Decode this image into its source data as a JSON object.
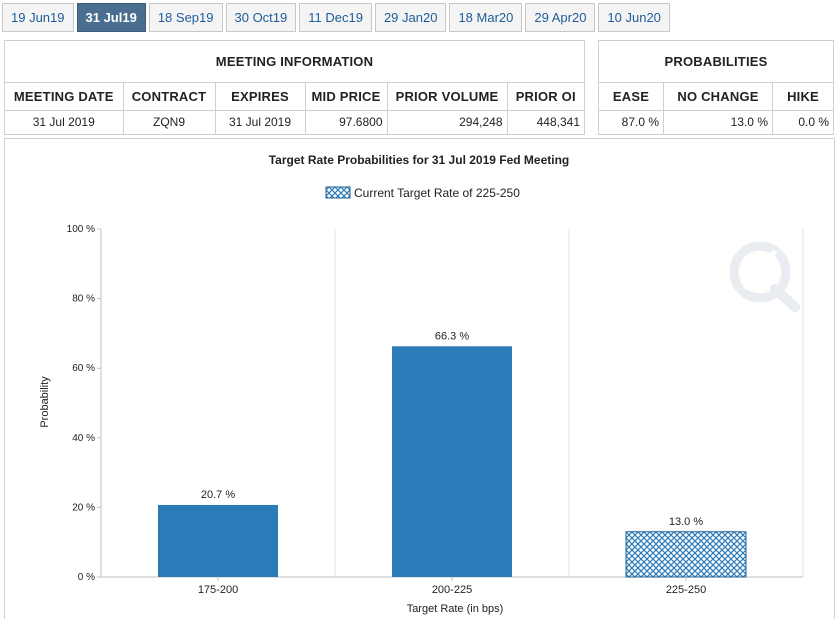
{
  "tabs": [
    {
      "label": "19 Jun19",
      "active": false
    },
    {
      "label": "31 Jul19",
      "active": true
    },
    {
      "label": "18 Sep19",
      "active": false
    },
    {
      "label": "30 Oct19",
      "active": false
    },
    {
      "label": "11 Dec19",
      "active": false
    },
    {
      "label": "29 Jan20",
      "active": false
    },
    {
      "label": "18 Mar20",
      "active": false
    },
    {
      "label": "29 Apr20",
      "active": false
    },
    {
      "label": "10 Jun20",
      "active": false
    }
  ],
  "meeting_info": {
    "title": "MEETING INFORMATION",
    "headers": [
      "MEETING DATE",
      "CONTRACT",
      "EXPIRES",
      "MID PRICE",
      "PRIOR VOLUME",
      "PRIOR OI"
    ],
    "row": {
      "meeting_date": "31 Jul 2019",
      "contract": "ZQN9",
      "expires": "31 Jul 2019",
      "mid_price": "97.6800",
      "prior_volume": "294,248",
      "prior_oi": "448,341"
    }
  },
  "probabilities": {
    "title": "PROBABILITIES",
    "headers": [
      "EASE",
      "NO CHANGE",
      "HIKE"
    ],
    "row": {
      "ease": "87.0 %",
      "no_change": "13.0 %",
      "hike": "0.0 %"
    }
  },
  "chart_data": {
    "type": "bar",
    "title": "Target Rate Probabilities for 31 Jul 2019 Fed Meeting",
    "legend": {
      "label": "Current Target Rate of 225-250",
      "placement": "top-center"
    },
    "categories": [
      "175-200",
      "200-225",
      "225-250"
    ],
    "values": [
      20.7,
      66.3,
      13.0
    ],
    "value_labels": [
      "20.7 %",
      "66.3 %",
      "13.0 %"
    ],
    "current_category": "225-250",
    "xlabel": "Target Rate (in bps)",
    "ylabel": "Probability",
    "ylim": [
      0,
      100
    ],
    "yticks": [
      0,
      20,
      40,
      60,
      80,
      100
    ],
    "ytick_labels": [
      "0 %",
      "20 %",
      "40 %",
      "60 %",
      "80 %",
      "100 %"
    ],
    "grid": "vertical",
    "colors": {
      "bar": "#2b7bb9",
      "bar_border": "#1d5f91",
      "hatch": "#2b7bb9",
      "grid": "#e3e3e3",
      "axis": "#c0c0c0"
    }
  }
}
